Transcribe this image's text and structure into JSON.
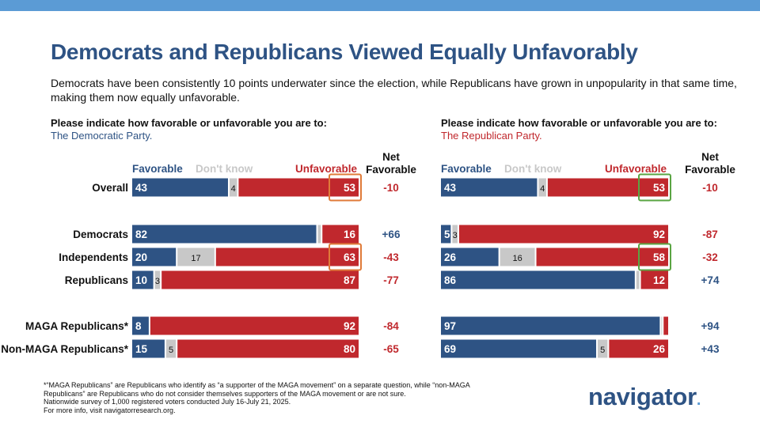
{
  "title": "Democrats and Republicans Viewed Equally Unfavorably",
  "subtitle": "Democrats have been consistently 10 points underwater since the election, while Republicans have grown in unpopularity in that same time, making them now equally unfavorable.",
  "colors": {
    "favorable": "#2e5384",
    "dont_know": "#c8c8c8",
    "unfavorable": "#c0282d",
    "title": "#2e5384",
    "highlight_orange": "#e07b39",
    "highlight_green": "#5aa543",
    "net_positive": "#2e5384",
    "net_negative": "#c0282d"
  },
  "chart_data": [
    {
      "type": "bar",
      "stacked": true,
      "orientation": "horizontal",
      "question": "Please indicate how favorable or unfavorable you are to:",
      "subject": "The Democratic Party.",
      "legend": [
        "Favorable",
        "Don't know",
        "Unfavorable"
      ],
      "net_header": [
        "Net",
        "Favorable"
      ],
      "categories": [
        "Overall",
        "Democrats",
        "Independents",
        "Republicans",
        "MAGA Republicans*",
        "Non-MAGA Republicans*"
      ],
      "series": [
        {
          "name": "Favorable",
          "values": [
            43,
            82,
            20,
            10,
            8,
            15
          ]
        },
        {
          "name": "Don't know",
          "values": [
            4,
            2,
            17,
            3,
            0,
            5
          ]
        },
        {
          "name": "Unfavorable",
          "values": [
            53,
            16,
            63,
            87,
            92,
            80
          ]
        }
      ],
      "dont_know_labels": [
        "4",
        "",
        "17",
        "3",
        "",
        "5"
      ],
      "net_favorable": [
        "-10",
        "+66",
        "-43",
        "-77",
        "-84",
        "-65"
      ],
      "highlighted": [
        0,
        2
      ],
      "xlim": [
        0,
        100
      ]
    },
    {
      "type": "bar",
      "stacked": true,
      "orientation": "horizontal",
      "question": "Please indicate how favorable or unfavorable you are to:",
      "subject": "The Republican Party.",
      "legend": [
        "Favorable",
        "Don't know",
        "Unfavorable"
      ],
      "net_header": [
        "Net",
        "Favorable"
      ],
      "categories": [
        "Overall",
        "Democrats",
        "Independents",
        "Republicans",
        "MAGA Republicans*",
        "Non-MAGA Republicans*"
      ],
      "series": [
        {
          "name": "Favorable",
          "values": [
            43,
            5,
            26,
            86,
            97,
            69
          ]
        },
        {
          "name": "Don't know",
          "values": [
            4,
            3,
            16,
            2,
            1,
            5
          ]
        },
        {
          "name": "Unfavorable",
          "values": [
            53,
            92,
            58,
            12,
            2,
            26
          ]
        }
      ],
      "fav_labels": [
        "43",
        "5",
        "26",
        "86",
        "97",
        "69"
      ],
      "unfav_labels": [
        "53",
        "92",
        "58",
        "12",
        "",
        "26"
      ],
      "dont_know_labels": [
        "4",
        "3",
        "16",
        "",
        "",
        "5"
      ],
      "net_favorable": [
        "-10",
        "-87",
        "-32",
        "+74",
        "+94",
        "+43"
      ],
      "highlighted": [
        0,
        2
      ],
      "xlim": [
        0,
        100
      ]
    }
  ],
  "footnote": [
    "*“MAGA Republicans” are Republicans who identify as “a supporter of the MAGA movement” on a separate question, while “non-MAGA Republicans” are Republicans who do not consider themselves supporters of the MAGA movement or are not sure.",
    "Nationwide survey of 1,000 registered voters conducted July 16-July 21, 2025.",
    "For more info, visit navigatorresearch.org."
  ],
  "logo": {
    "text": "navigator",
    "dot": "."
  }
}
